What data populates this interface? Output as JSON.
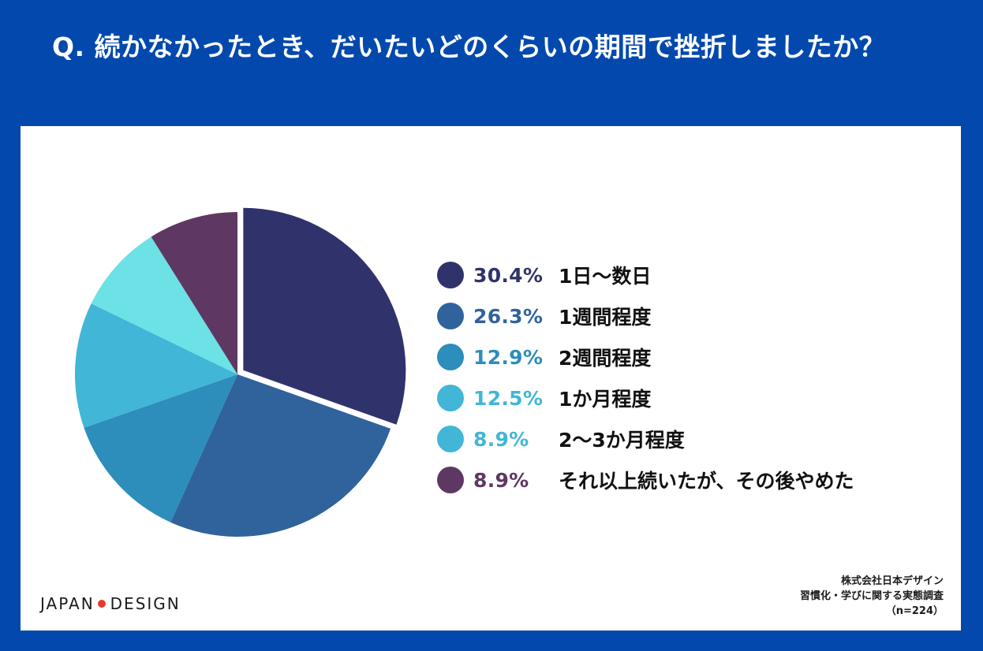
{
  "question": "Q. 続かなかったとき、だいたいどのくらいの期間で挫折しましたか？",
  "logo": {
    "left": "JAPAN",
    "right": "DESIGN"
  },
  "source": {
    "company": "株式会社日本デザイン",
    "survey": "習慣化・学びに関する実態調査",
    "sample": "（n=224）"
  },
  "chart_data": {
    "type": "pie",
    "title": "Q. 続かなかったとき、だいたいどのくらいの期間で挫折しましたか？",
    "slices": [
      {
        "label": "1日〜数日",
        "value": 30.4,
        "pct_label": "30.4%",
        "color": "#30336b",
        "text_color": "#30336b"
      },
      {
        "label": "1週間程度",
        "value": 26.3,
        "pct_label": "26.3%",
        "color": "#30639c",
        "text_color": "#30639c"
      },
      {
        "label": "2週間程度",
        "value": 12.9,
        "pct_label": "12.9%",
        "color": "#2d8dbb",
        "text_color": "#2d8dbb"
      },
      {
        "label": "1か月程度",
        "value": 12.5,
        "pct_label": "12.5%",
        "color": "#41b6d7",
        "text_color": "#41b6d7"
      },
      {
        "label": "2〜3か月程度",
        "value": 8.9,
        "pct_label": "8.9%",
        "color": "#6ce1e6",
        "text_color": "#41b6d7",
        "swatch_color": "#41b6d7"
      },
      {
        "label": "それ以上続いたが、その後やめた",
        "value": 8.9,
        "pct_label": "8.9%",
        "color": "#5e3862",
        "text_color": "#5e3862"
      }
    ],
    "legend_position": "right"
  }
}
